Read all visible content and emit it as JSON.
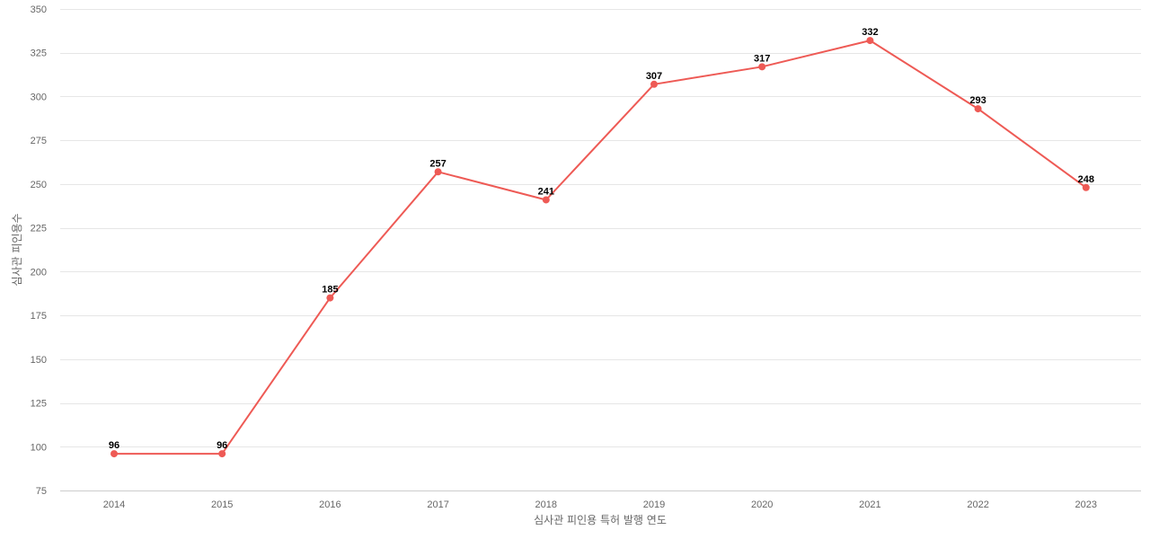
{
  "chart_data": {
    "type": "line",
    "x": [
      "2014",
      "2015",
      "2016",
      "2017",
      "2018",
      "2019",
      "2020",
      "2021",
      "2022",
      "2023"
    ],
    "series": [
      {
        "values": [
          96,
          96,
          185,
          257,
          241,
          307,
          317,
          332,
          293,
          248
        ]
      }
    ],
    "xlabel": "심사관 피인용 특허 발행 연도",
    "ylabel": "심사관 피인용수",
    "ylim": [
      75,
      350
    ],
    "yticks": [
      75,
      100,
      125,
      150,
      175,
      200,
      225,
      250,
      275,
      300,
      325,
      350
    ],
    "grid": true,
    "line_color": "#ee5a55",
    "data_labels": true
  }
}
